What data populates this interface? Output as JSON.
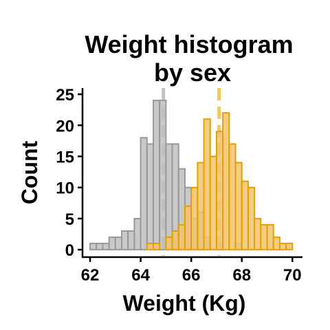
{
  "chart_data": {
    "type": "histogram",
    "title": [
      "Weight histogram",
      "by sex"
    ],
    "xlabel": "Weight (Kg)",
    "ylabel": "Count",
    "xlim": [
      61.7,
      70.4
    ],
    "ylim": [
      -1.2,
      26
    ],
    "x_ticks": [
      62,
      64,
      66,
      68,
      70
    ],
    "y_ticks": [
      0,
      5,
      10,
      15,
      20,
      25
    ],
    "bin_width": 0.25,
    "grid": false,
    "legend": "none",
    "series": [
      {
        "bins": [
          {
            "x": 61.875,
            "y": 0
          },
          {
            "x": 62.125,
            "y": 1
          },
          {
            "x": 62.375,
            "y": 1
          },
          {
            "x": 62.625,
            "y": 1
          },
          {
            "x": 62.875,
            "y": 2
          },
          {
            "x": 63.125,
            "y": 2
          },
          {
            "x": 63.375,
            "y": 3
          },
          {
            "x": 63.625,
            "y": 3
          },
          {
            "x": 63.875,
            "y": 5
          },
          {
            "x": 64.125,
            "y": 18
          },
          {
            "x": 64.375,
            "y": 17
          },
          {
            "x": 64.625,
            "y": 24
          },
          {
            "x": 64.875,
            "y": 24
          },
          {
            "x": 65.125,
            "y": 17
          },
          {
            "x": 65.375,
            "y": 17
          },
          {
            "x": 65.625,
            "y": 13
          },
          {
            "x": 65.875,
            "y": 10
          },
          {
            "x": 66.125,
            "y": 5
          },
          {
            "x": 66.375,
            "y": 6
          },
          {
            "x": 66.625,
            "y": 2
          },
          {
            "x": 66.875,
            "y": 0
          },
          {
            "x": 67.125,
            "y": 1
          },
          {
            "x": 67.375,
            "y": 0
          },
          {
            "x": 67.625,
            "y": 0
          },
          {
            "x": 67.875,
            "y": 1
          },
          {
            "x": 68.125,
            "y": 0
          }
        ],
        "mean": 64.9,
        "color": "#999999",
        "fill": "#c0c0c0"
      },
      {
        "bins": [
          {
            "x": 64.125,
            "y": 0
          },
          {
            "x": 64.375,
            "y": 1
          },
          {
            "x": 64.625,
            "y": 1
          },
          {
            "x": 64.875,
            "y": 0
          },
          {
            "x": 65.125,
            "y": 2
          },
          {
            "x": 65.375,
            "y": 3
          },
          {
            "x": 65.625,
            "y": 4
          },
          {
            "x": 65.875,
            "y": 7
          },
          {
            "x": 66.125,
            "y": 10
          },
          {
            "x": 66.375,
            "y": 14
          },
          {
            "x": 66.625,
            "y": 21
          },
          {
            "x": 66.875,
            "y": 15
          },
          {
            "x": 67.125,
            "y": 19
          },
          {
            "x": 67.375,
            "y": 22
          },
          {
            "x": 67.625,
            "y": 17
          },
          {
            "x": 67.875,
            "y": 14
          },
          {
            "x": 68.125,
            "y": 11
          },
          {
            "x": 68.375,
            "y": 10
          },
          {
            "x": 68.625,
            "y": 5
          },
          {
            "x": 68.875,
            "y": 4
          },
          {
            "x": 69.125,
            "y": 4
          },
          {
            "x": 69.375,
            "y": 2
          },
          {
            "x": 69.625,
            "y": 1
          },
          {
            "x": 69.875,
            "y": 1
          },
          {
            "x": 70.125,
            "y": 0
          }
        ],
        "mean": 67.1,
        "color": "#E69F00",
        "fill": "#f2c46e"
      }
    ]
  }
}
